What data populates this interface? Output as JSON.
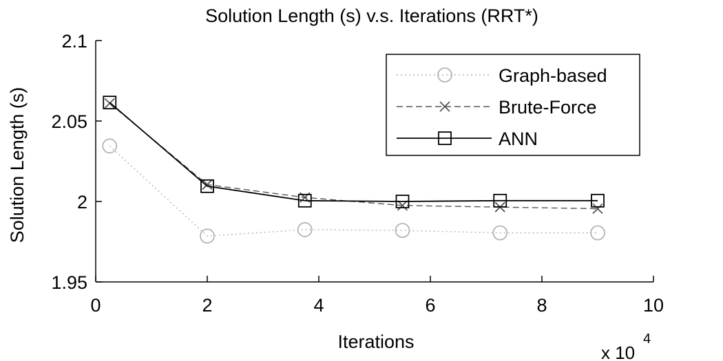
{
  "chart_data": {
    "type": "line",
    "title": "Solution Length (s) v.s. Iterations (RRT*)",
    "xlabel": "Iterations",
    "ylabel": "Solution Length (s)",
    "x_multiplier_label": "x 10",
    "x_multiplier_exponent": "4",
    "xlim": [
      0,
      10
    ],
    "ylim": [
      1.95,
      2.1
    ],
    "xticks": [
      0,
      2,
      4,
      6,
      8,
      10
    ],
    "xtick_labels": [
      "0",
      "2",
      "4",
      "6",
      "8",
      "10"
    ],
    "yticks": [
      1.95,
      2.0,
      2.05,
      2.1
    ],
    "ytick_labels": [
      "1.95",
      "2",
      "2.05",
      "2.1"
    ],
    "legend_position": "top-right",
    "x": [
      0.25,
      2,
      3.75,
      5.5,
      7.25,
      9
    ],
    "series": [
      {
        "name": "Graph-based",
        "values": [
          2.0345,
          1.9785,
          1.9825,
          1.982,
          1.9805,
          1.9805
        ],
        "color": "#b4b4b4",
        "line_style": "dotted",
        "marker": "circle"
      },
      {
        "name": "Brute-Force",
        "values": [
          2.061,
          2.0105,
          2.0025,
          1.9975,
          1.9965,
          1.9955
        ],
        "color": "#555555",
        "line_style": "dashed",
        "marker": "x"
      },
      {
        "name": "ANN",
        "values": [
          2.0615,
          2.0095,
          2.0005,
          2.0,
          2.0005,
          2.0005
        ],
        "color": "#000000",
        "line_style": "solid",
        "marker": "square"
      }
    ]
  }
}
